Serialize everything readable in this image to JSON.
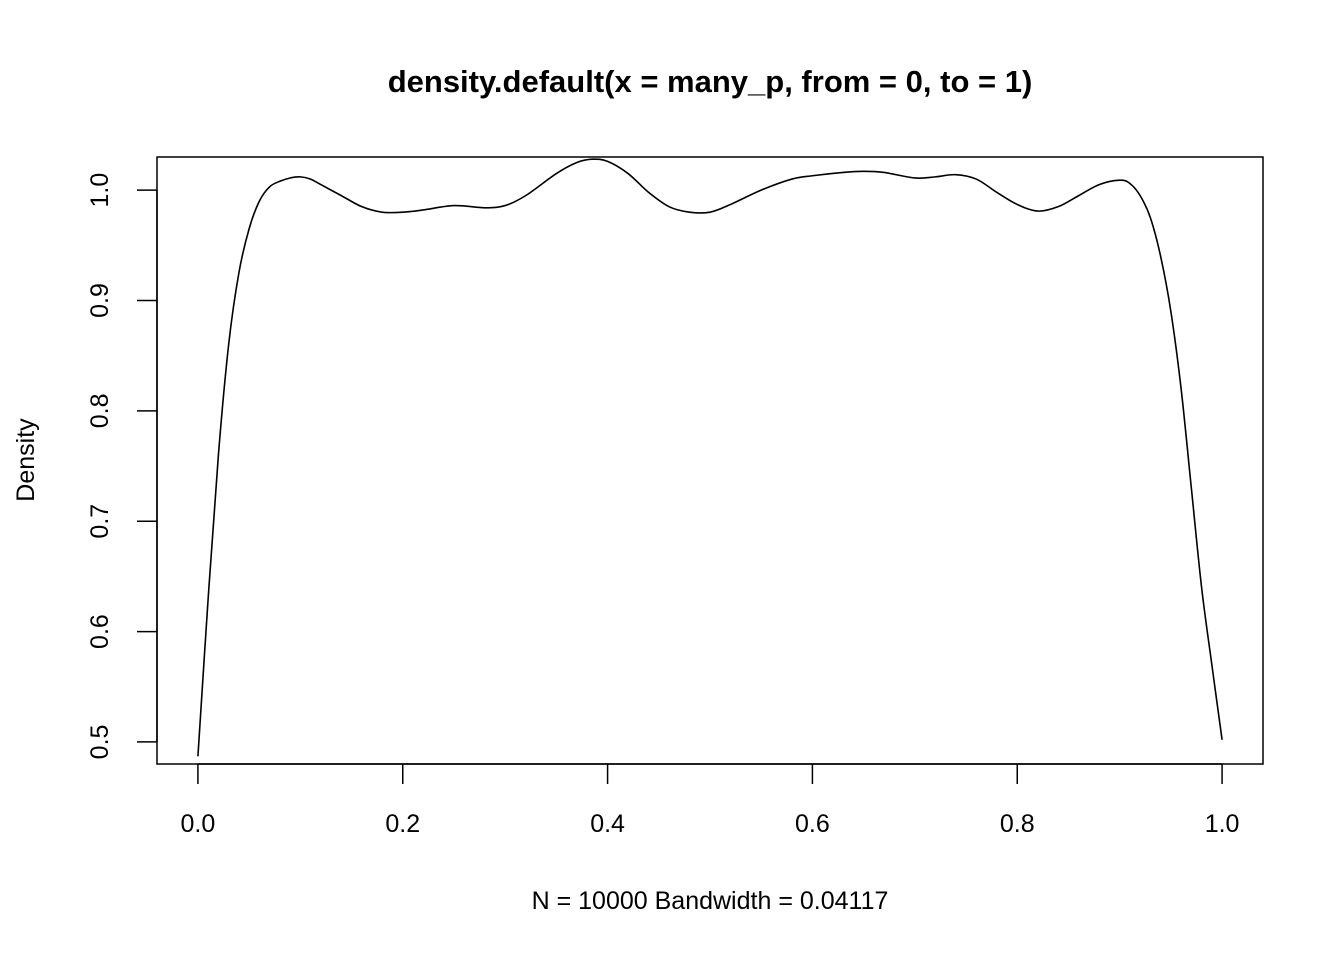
{
  "chart_data": {
    "type": "line",
    "title": "density.default(x = many_p, from = 0, to = 1)",
    "xlabel": "N = 10000   Bandwidth = 0.04117",
    "ylabel": "Density",
    "xlim": [
      0,
      1
    ],
    "ylim": [
      0.48,
      1.03
    ],
    "xticks": [
      0.0,
      0.2,
      0.4,
      0.6,
      0.8,
      1.0
    ],
    "xtick_labels": [
      "0.0",
      "0.2",
      "0.4",
      "0.6",
      "0.8",
      "1.0"
    ],
    "yticks": [
      0.5,
      0.6,
      0.7,
      0.8,
      0.9,
      1.0
    ],
    "ytick_labels": [
      "0.5",
      "0.6",
      "0.7",
      "0.8",
      "0.9",
      "1.0"
    ],
    "grid": false,
    "line_color": "#000000",
    "series": [
      {
        "x": [
          0.0,
          0.01,
          0.02,
          0.03,
          0.04,
          0.05,
          0.06,
          0.07,
          0.08,
          0.09,
          0.1,
          0.11,
          0.12,
          0.14,
          0.16,
          0.18,
          0.2,
          0.22,
          0.25,
          0.28,
          0.3,
          0.32,
          0.35,
          0.37,
          0.385,
          0.4,
          0.42,
          0.44,
          0.46,
          0.48,
          0.5,
          0.52,
          0.55,
          0.58,
          0.6,
          0.63,
          0.65,
          0.67,
          0.7,
          0.72,
          0.74,
          0.76,
          0.78,
          0.8,
          0.82,
          0.84,
          0.86,
          0.88,
          0.9,
          0.91,
          0.92,
          0.93,
          0.94,
          0.95,
          0.96,
          0.97,
          0.98,
          0.99,
          1.0
        ],
        "y": [
          0.487,
          0.63,
          0.76,
          0.86,
          0.925,
          0.965,
          0.99,
          1.003,
          1.008,
          1.011,
          1.012,
          1.01,
          1.005,
          0.995,
          0.985,
          0.98,
          0.98,
          0.982,
          0.986,
          0.984,
          0.986,
          0.995,
          1.015,
          1.025,
          1.028,
          1.026,
          1.015,
          0.998,
          0.985,
          0.98,
          0.98,
          0.987,
          1.0,
          1.01,
          1.013,
          1.016,
          1.017,
          1.016,
          1.011,
          1.012,
          1.014,
          1.01,
          0.998,
          0.987,
          0.981,
          0.985,
          0.995,
          1.005,
          1.009,
          1.006,
          0.995,
          0.975,
          0.94,
          0.89,
          0.82,
          0.73,
          0.64,
          0.57,
          0.502
        ]
      }
    ]
  }
}
